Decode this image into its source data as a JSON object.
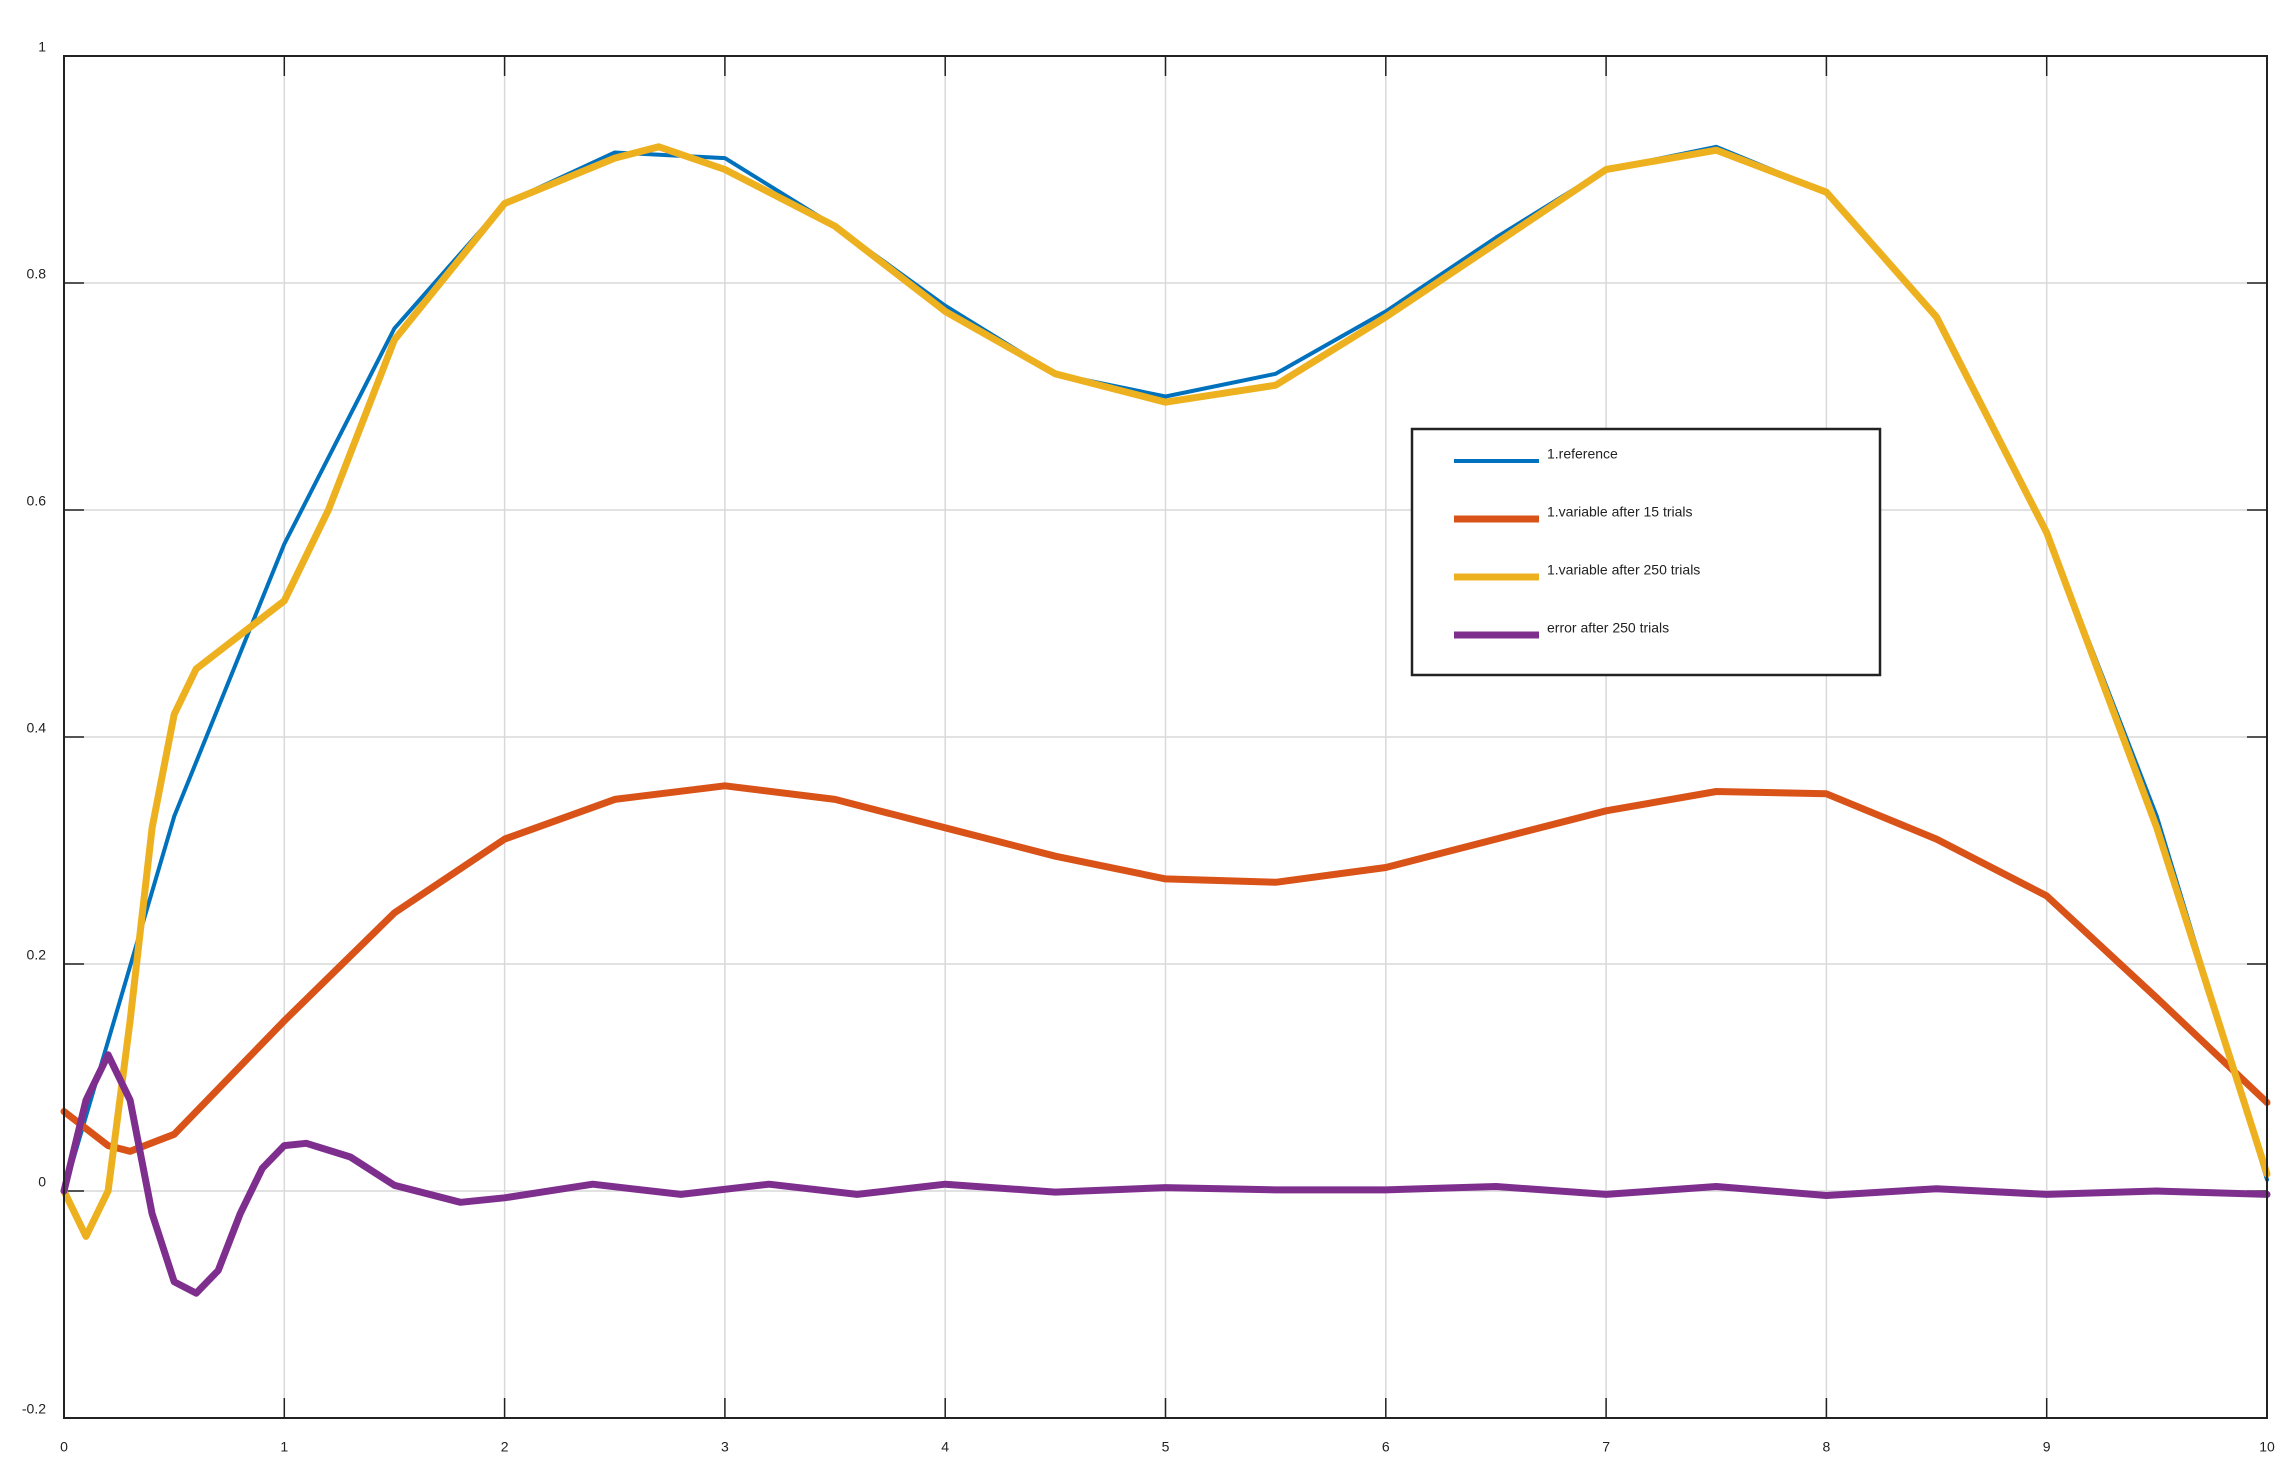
{
  "chart_data": {
    "type": "line",
    "xlim": [
      0,
      10
    ],
    "xticks": [
      0,
      1,
      2,
      3,
      4,
      5,
      6,
      7,
      8,
      9,
      10
    ],
    "ylim": [
      -0.2,
      1
    ],
    "yticks": [
      -0.2,
      0,
      0.2,
      0.4,
      0.6,
      0.8,
      1
    ],
    "grid": true,
    "series": [
      {
        "name": "1.reference",
        "color": "#0072bd",
        "x": [
          0,
          0.5,
          1,
          1.5,
          2,
          2.5,
          3,
          3.5,
          4,
          4.5,
          5,
          5.5,
          6,
          6.5,
          7,
          7.5,
          8,
          8.5,
          9,
          9.5,
          10
        ],
        "values": [
          0,
          0.33,
          0.57,
          0.76,
          0.87,
          0.915,
          0.91,
          0.85,
          0.78,
          0.72,
          0.7,
          0.72,
          0.775,
          0.84,
          0.9,
          0.92,
          0.88,
          0.77,
          0.58,
          0.33,
          0.01
        ]
      },
      {
        "name": "1.variable after 15 trials",
        "color": "#d95319",
        "x": [
          0,
          0.2,
          0.3,
          0.5,
          1,
          1.5,
          2,
          2.5,
          3,
          3.5,
          4,
          4.5,
          5,
          5.5,
          6,
          6.5,
          7,
          7.5,
          8,
          8.5,
          9,
          9.5,
          10
        ],
        "values": [
          0.07,
          0.04,
          0.035,
          0.05,
          0.15,
          0.245,
          0.31,
          0.345,
          0.357,
          0.345,
          0.32,
          0.295,
          0.275,
          0.272,
          0.285,
          0.31,
          0.335,
          0.352,
          0.35,
          0.31,
          0.26,
          0.17,
          0.078
        ]
      },
      {
        "name": "1.variable after 250 trials",
        "color": "#edb120",
        "x": [
          0,
          0.1,
          0.2,
          0.3,
          0.4,
          0.5,
          0.6,
          0.8,
          1,
          1.2,
          1.5,
          2,
          2.5,
          2.7,
          3,
          3.5,
          4,
          4.5,
          5,
          5.5,
          6,
          6.5,
          7,
          7.5,
          8,
          8.5,
          9,
          9.5,
          10
        ],
        "values": [
          0,
          -0.04,
          0,
          0.15,
          0.32,
          0.42,
          0.46,
          0.49,
          0.52,
          0.6,
          0.75,
          0.87,
          0.91,
          0.92,
          0.9,
          0.85,
          0.775,
          0.72,
          0.695,
          0.71,
          0.77,
          0.835,
          0.9,
          0.917,
          0.88,
          0.77,
          0.58,
          0.32,
          0.015
        ]
      },
      {
        "name": "error after 250 trials",
        "color": "#7e2f8e",
        "x": [
          0,
          0.1,
          0.2,
          0.3,
          0.4,
          0.5,
          0.6,
          0.7,
          0.8,
          0.9,
          1,
          1.1,
          1.3,
          1.5,
          1.8,
          2,
          2.4,
          2.8,
          3.2,
          3.6,
          4,
          4.5,
          5,
          5.5,
          6,
          6.5,
          7,
          7.5,
          8,
          8.5,
          9,
          9.5,
          10
        ],
        "values": [
          0,
          0.08,
          0.12,
          0.08,
          -0.02,
          -0.08,
          -0.09,
          -0.07,
          -0.02,
          0.02,
          0.04,
          0.042,
          0.03,
          0.005,
          -0.01,
          -0.006,
          0.006,
          -0.003,
          0.006,
          -0.003,
          0.006,
          -0.001,
          0.003,
          0.001,
          0.001,
          0.004,
          -0.003,
          0.004,
          -0.004,
          0.002,
          -0.003,
          0,
          -0.003
        ]
      }
    ]
  }
}
